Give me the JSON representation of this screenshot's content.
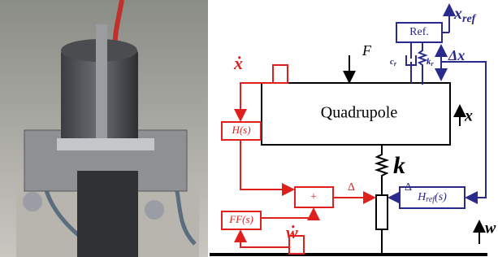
{
  "diagram": {
    "ref_block": "Ref.",
    "x_ref": {
      "base": "x",
      "sub": "ref"
    },
    "force": "F",
    "damper_r": {
      "base": "c",
      "sub": "r"
    },
    "spring_r": {
      "base": "k",
      "sub": "r"
    },
    "delta_x": "Δx",
    "x_dot": "ẋ",
    "quadrupole": "Quadrupole",
    "x": "x",
    "h_block": "H(s)",
    "k": "k",
    "sum": "+",
    "delta_red": "Δ",
    "delta_blue": "Δ",
    "h_ref_block": {
      "base": "H",
      "sub": "ref",
      "rest": "(s)"
    },
    "ff_block": "FF(s)",
    "w_dot": "ẇ",
    "w": "w"
  }
}
